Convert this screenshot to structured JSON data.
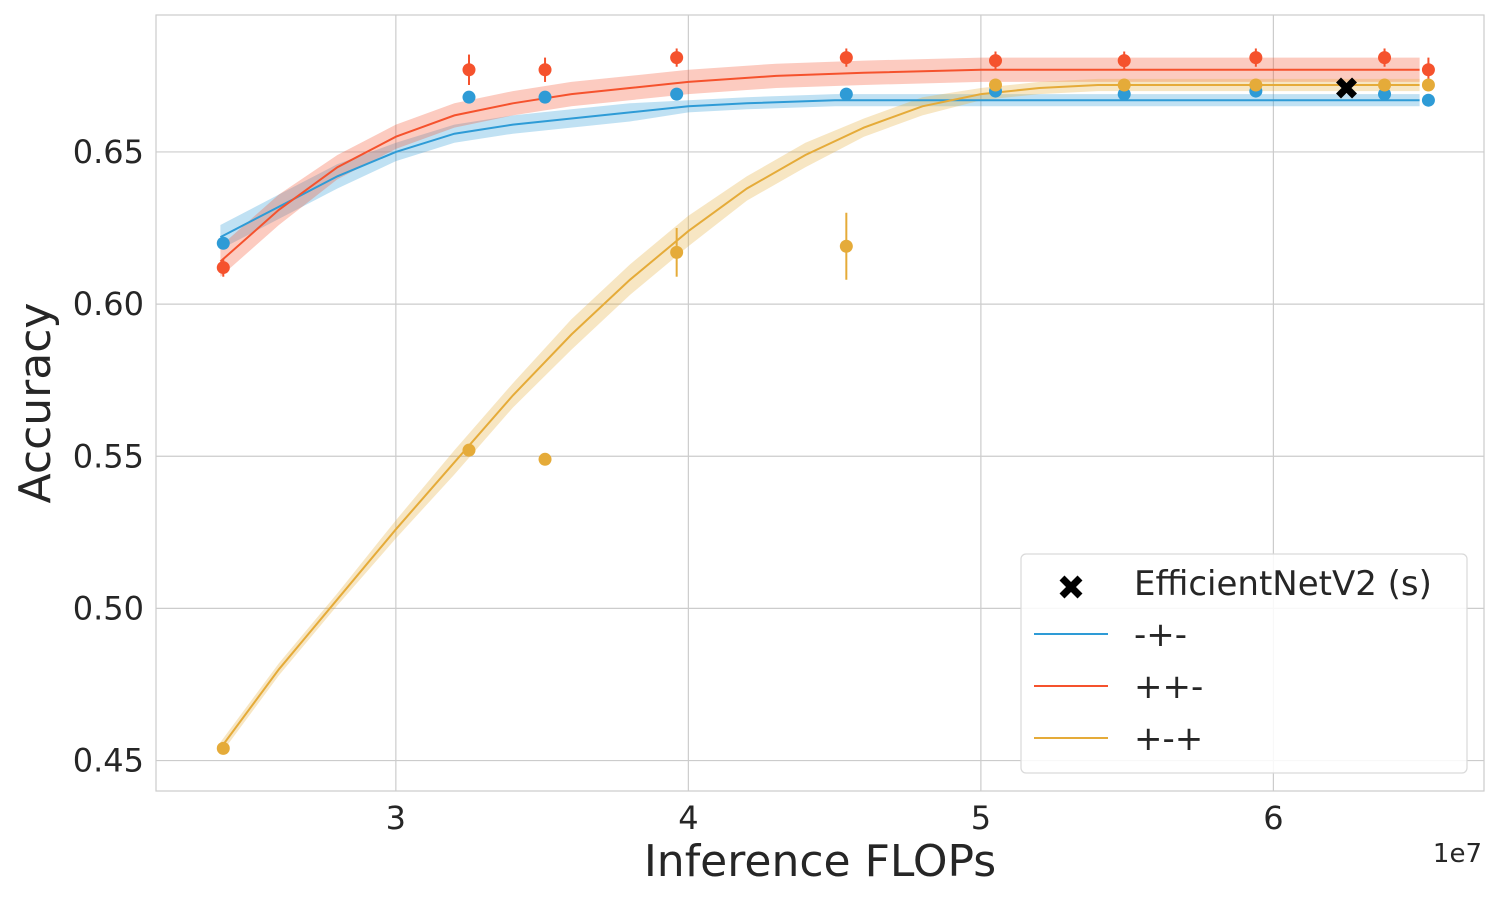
{
  "chart_data": {
    "type": "line",
    "xlabel": "Inference FLOPs",
    "ylabel": "Accuracy",
    "x_offset_label": "1e7",
    "xlim": [
      2.18,
      6.72
    ],
    "ylim": [
      0.44,
      0.695
    ],
    "x_ticks": [
      {
        "value": 3,
        "label": "3"
      },
      {
        "value": 4,
        "label": "4"
      },
      {
        "value": 5,
        "label": "5"
      },
      {
        "value": 6,
        "label": "6"
      }
    ],
    "y_ticks": [
      {
        "value": 0.45,
        "label": "0.45"
      },
      {
        "value": 0.5,
        "label": "0.50"
      },
      {
        "value": 0.55,
        "label": "0.55"
      },
      {
        "value": 0.6,
        "label": "0.60"
      },
      {
        "value": 0.65,
        "label": "0.65"
      }
    ],
    "grid": true,
    "legend_position": "bottom-right",
    "series": [
      {
        "name": "-+-",
        "color": "#2e9bd6",
        "curve": {
          "x": [
            2.4,
            2.6,
            2.8,
            3.0,
            3.2,
            3.4,
            3.6,
            3.8,
            4.0,
            4.2,
            4.5,
            5.0,
            5.5,
            6.0,
            6.5
          ],
          "y": [
            0.622,
            0.632,
            0.642,
            0.65,
            0.656,
            0.659,
            0.661,
            0.663,
            0.665,
            0.666,
            0.667,
            0.667,
            0.667,
            0.667,
            0.667
          ],
          "band": [
            0.004,
            0.004,
            0.004,
            0.003,
            0.003,
            0.003,
            0.003,
            0.003,
            0.002,
            0.002,
            0.002,
            0.002,
            0.002,
            0.002,
            0.002
          ]
        },
        "points": [
          {
            "x": 2.41,
            "y": 0.62,
            "err": 0.001
          },
          {
            "x": 3.25,
            "y": 0.668,
            "err": 0.001
          },
          {
            "x": 3.51,
            "y": 0.668,
            "err": 0.001
          },
          {
            "x": 3.96,
            "y": 0.669,
            "err": 0.001
          },
          {
            "x": 4.54,
            "y": 0.669,
            "err": 0.001
          },
          {
            "x": 5.05,
            "y": 0.67,
            "err": 0.001
          },
          {
            "x": 5.49,
            "y": 0.669,
            "err": 0.001
          },
          {
            "x": 5.94,
            "y": 0.67,
            "err": 0.001
          },
          {
            "x": 6.38,
            "y": 0.669,
            "err": 0.001
          },
          {
            "x": 6.53,
            "y": 0.667,
            "err": 0.001
          }
        ]
      },
      {
        "name": "++-",
        "color": "#f5522d",
        "curve": {
          "x": [
            2.4,
            2.6,
            2.8,
            3.0,
            3.2,
            3.4,
            3.6,
            3.8,
            4.0,
            4.3,
            4.6,
            5.0,
            5.5,
            6.0,
            6.5
          ],
          "y": [
            0.614,
            0.631,
            0.645,
            0.655,
            0.662,
            0.666,
            0.669,
            0.671,
            0.673,
            0.675,
            0.676,
            0.677,
            0.677,
            0.677,
            0.677
          ],
          "band": [
            0.005,
            0.005,
            0.004,
            0.004,
            0.004,
            0.004,
            0.004,
            0.004,
            0.004,
            0.004,
            0.004,
            0.004,
            0.004,
            0.004,
            0.004
          ]
        },
        "points": [
          {
            "x": 2.41,
            "y": 0.612,
            "err": 0.003
          },
          {
            "x": 3.25,
            "y": 0.677,
            "err": 0.005
          },
          {
            "x": 3.51,
            "y": 0.677,
            "err": 0.004
          },
          {
            "x": 3.96,
            "y": 0.681,
            "err": 0.003
          },
          {
            "x": 4.54,
            "y": 0.681,
            "err": 0.003
          },
          {
            "x": 5.05,
            "y": 0.68,
            "err": 0.003
          },
          {
            "x": 5.49,
            "y": 0.68,
            "err": 0.003
          },
          {
            "x": 5.94,
            "y": 0.681,
            "err": 0.003
          },
          {
            "x": 6.38,
            "y": 0.681,
            "err": 0.003
          },
          {
            "x": 6.53,
            "y": 0.677,
            "err": 0.004
          }
        ]
      },
      {
        "name": "+-+",
        "color": "#e5ab39",
        "curve": {
          "x": [
            2.4,
            2.6,
            2.8,
            3.0,
            3.2,
            3.4,
            3.6,
            3.8,
            4.0,
            4.2,
            4.4,
            4.6,
            4.8,
            5.0,
            5.2,
            5.4,
            5.7,
            6.0,
            6.5
          ],
          "y": [
            0.454,
            0.48,
            0.503,
            0.526,
            0.548,
            0.57,
            0.59,
            0.608,
            0.624,
            0.638,
            0.649,
            0.658,
            0.665,
            0.669,
            0.671,
            0.672,
            0.672,
            0.672,
            0.672
          ],
          "band": [
            0.002,
            0.002,
            0.002,
            0.003,
            0.004,
            0.004,
            0.005,
            0.005,
            0.005,
            0.004,
            0.004,
            0.003,
            0.003,
            0.002,
            0.002,
            0.002,
            0.002,
            0.002,
            0.002
          ]
        },
        "points": [
          {
            "x": 2.41,
            "y": 0.454,
            "err": 0.001
          },
          {
            "x": 3.25,
            "y": 0.552,
            "err": 0.001
          },
          {
            "x": 3.51,
            "y": 0.549,
            "err": 0.001
          },
          {
            "x": 3.96,
            "y": 0.617,
            "err": 0.008
          },
          {
            "x": 4.54,
            "y": 0.619,
            "err": 0.011
          },
          {
            "x": 5.05,
            "y": 0.672,
            "err": 0.002
          },
          {
            "x": 5.49,
            "y": 0.672,
            "err": 0.002
          },
          {
            "x": 5.94,
            "y": 0.672,
            "err": 0.002
          },
          {
            "x": 6.38,
            "y": 0.672,
            "err": 0.002
          },
          {
            "x": 6.53,
            "y": 0.672,
            "err": 0.002
          }
        ]
      }
    ],
    "reference_marker": {
      "name": "EfficientNetV2 (s)",
      "x": 6.25,
      "y": 0.671,
      "color": "#000000",
      "marker": "X"
    },
    "legend": [
      {
        "label": "EfficientNetV2 (s)",
        "kind": "marker",
        "color": "#000000"
      },
      {
        "label": "-+-",
        "kind": "line",
        "color": "#2e9bd6"
      },
      {
        "label": "++-",
        "kind": "line",
        "color": "#f5522d"
      },
      {
        "label": "+-+",
        "kind": "line",
        "color": "#e5ab39"
      }
    ]
  }
}
